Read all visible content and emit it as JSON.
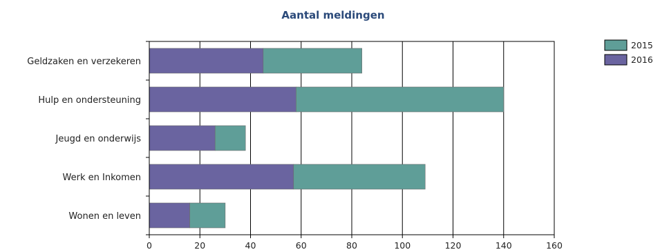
{
  "chart_data": {
    "type": "bar",
    "orientation": "horizontal",
    "stacked": true,
    "title": "Aantal meldingen",
    "xlabel": "",
    "ylabel": "",
    "xlim": [
      0,
      160
    ],
    "xticks": [
      0,
      20,
      40,
      60,
      80,
      100,
      120,
      140,
      160
    ],
    "grid": "vertical",
    "legend_position": "top-right",
    "categories": [
      "Geldzaken en verzekeren",
      "Hulp en ondersteuning",
      "Jeugd en onderwijs",
      "Werk en Inkomen",
      "Wonen en leven"
    ],
    "series": [
      {
        "name": "2016",
        "color": "#6a64a0",
        "values": [
          45,
          58,
          26,
          57,
          16
        ]
      },
      {
        "name": "2015",
        "color": "#5f9e98",
        "values": [
          39,
          82,
          12,
          52,
          14
        ]
      }
    ],
    "legend": [
      {
        "name": "2015",
        "color": "#5f9e98"
      },
      {
        "name": "2016",
        "color": "#6a64a0"
      }
    ]
  }
}
